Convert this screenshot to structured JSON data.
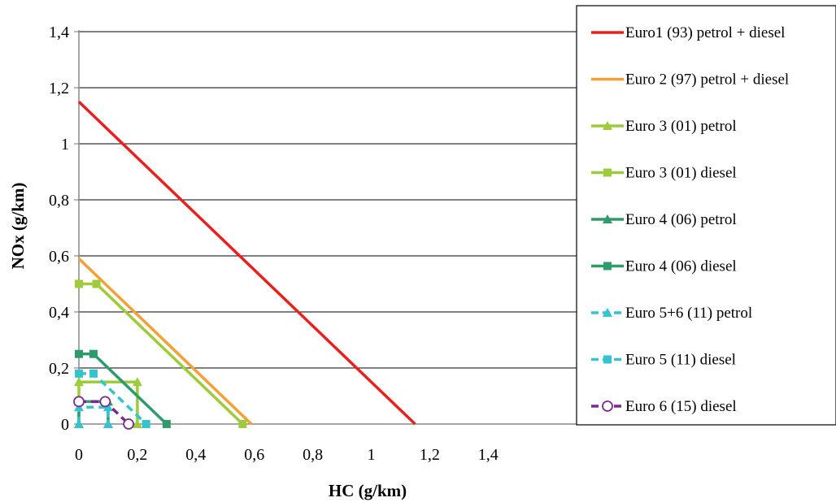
{
  "chart_data": {
    "type": "line",
    "title": "",
    "xlabel": "HC (g/km)",
    "ylabel": "NOx (g/km)",
    "xlim": [
      0,
      1.4
    ],
    "ylim": [
      0,
      1.4
    ],
    "x_ticks": [
      "0",
      "0,2",
      "0,4",
      "0,6",
      "0,8",
      "1",
      "1,2",
      "1,4"
    ],
    "y_ticks": [
      "0",
      "0,2",
      "0,4",
      "0,6",
      "0,8",
      "1",
      "1,2",
      "1,4"
    ],
    "grid": "horizontal",
    "legend_position": "right",
    "series": [
      {
        "name": "Euro1 (93) petrol + diesel",
        "color": "#e8211f",
        "marker": "none",
        "dash": "solid",
        "points": [
          [
            0,
            1.15
          ],
          [
            1.15,
            0
          ]
        ]
      },
      {
        "name": "Euro 2 (97) petrol + diesel",
        "color": "#f5a037",
        "marker": "none",
        "dash": "solid",
        "points": [
          [
            0,
            0.59
          ],
          [
            0.59,
            0
          ]
        ]
      },
      {
        "name": "Euro 3 (01) petrol",
        "color": "#9dcb3a",
        "marker": "triangle",
        "dash": "solid",
        "points": [
          [
            0,
            0
          ],
          [
            0,
            0.15
          ],
          [
            0.2,
            0.15
          ],
          [
            0.2,
            0
          ]
        ]
      },
      {
        "name": "Euro 3 (01) diesel",
        "color": "#9dcb3a",
        "marker": "square",
        "dash": "solid",
        "points": [
          [
            0,
            0.5
          ],
          [
            0.06,
            0.5
          ],
          [
            0.56,
            0
          ]
        ]
      },
      {
        "name": "Euro 4 (06) petrol",
        "color": "#2e9b6b",
        "marker": "triangle",
        "dash": "solid",
        "points": [
          [
            0,
            0
          ],
          [
            0,
            0.08
          ],
          [
            0.1,
            0.08
          ],
          [
            0.1,
            0
          ]
        ]
      },
      {
        "name": "Euro 4 (06) diesel",
        "color": "#2e9b6b",
        "marker": "square",
        "dash": "solid",
        "points": [
          [
            0,
            0.25
          ],
          [
            0.05,
            0.25
          ],
          [
            0.3,
            0
          ]
        ]
      },
      {
        "name": "Euro 5+6 (11) petrol",
        "color": "#33c4cf",
        "marker": "triangle",
        "dash": "dashed",
        "points": [
          [
            0,
            0
          ],
          [
            0,
            0.06
          ],
          [
            0.1,
            0.06
          ],
          [
            0.1,
            0
          ]
        ]
      },
      {
        "name": "Euro 5 (11) diesel",
        "color": "#33c4cf",
        "marker": "square",
        "dash": "dashed",
        "points": [
          [
            0,
            0.18
          ],
          [
            0.05,
            0.18
          ],
          [
            0.23,
            0
          ]
        ]
      },
      {
        "name": "Euro 6 (15) diesel",
        "color": "#7a2a8e",
        "marker": "circle",
        "dash": "dashed",
        "points": [
          [
            0,
            0.08
          ],
          [
            0.09,
            0.08
          ],
          [
            0.17,
            0
          ]
        ]
      }
    ]
  }
}
